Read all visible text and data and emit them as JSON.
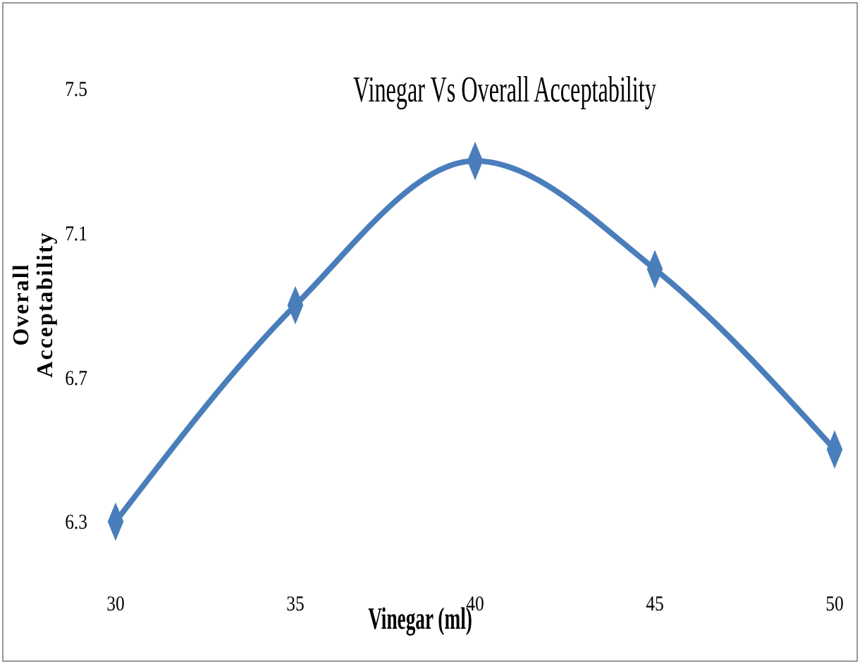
{
  "chart_data": {
    "type": "line",
    "title": "Vinegar Vs Overall Acceptability",
    "xlabel": "Vinegar (ml)",
    "ylabel": "Overall Acceptability",
    "x": [
      30,
      35,
      40,
      45,
      50
    ],
    "series": [
      {
        "color": "#4a7ebb",
        "values": [
          6.3,
          6.9,
          7.3,
          7.0,
          6.5
        ]
      }
    ],
    "xlim": [
      30,
      50
    ],
    "xticks": [
      30,
      35,
      40,
      45,
      50
    ],
    "ylim": [
      6.3,
      7.5
    ],
    "yticks": [
      6.3,
      6.7,
      7.1,
      7.5
    ],
    "grid": false,
    "marker": "diamond",
    "line_style": "solid"
  }
}
